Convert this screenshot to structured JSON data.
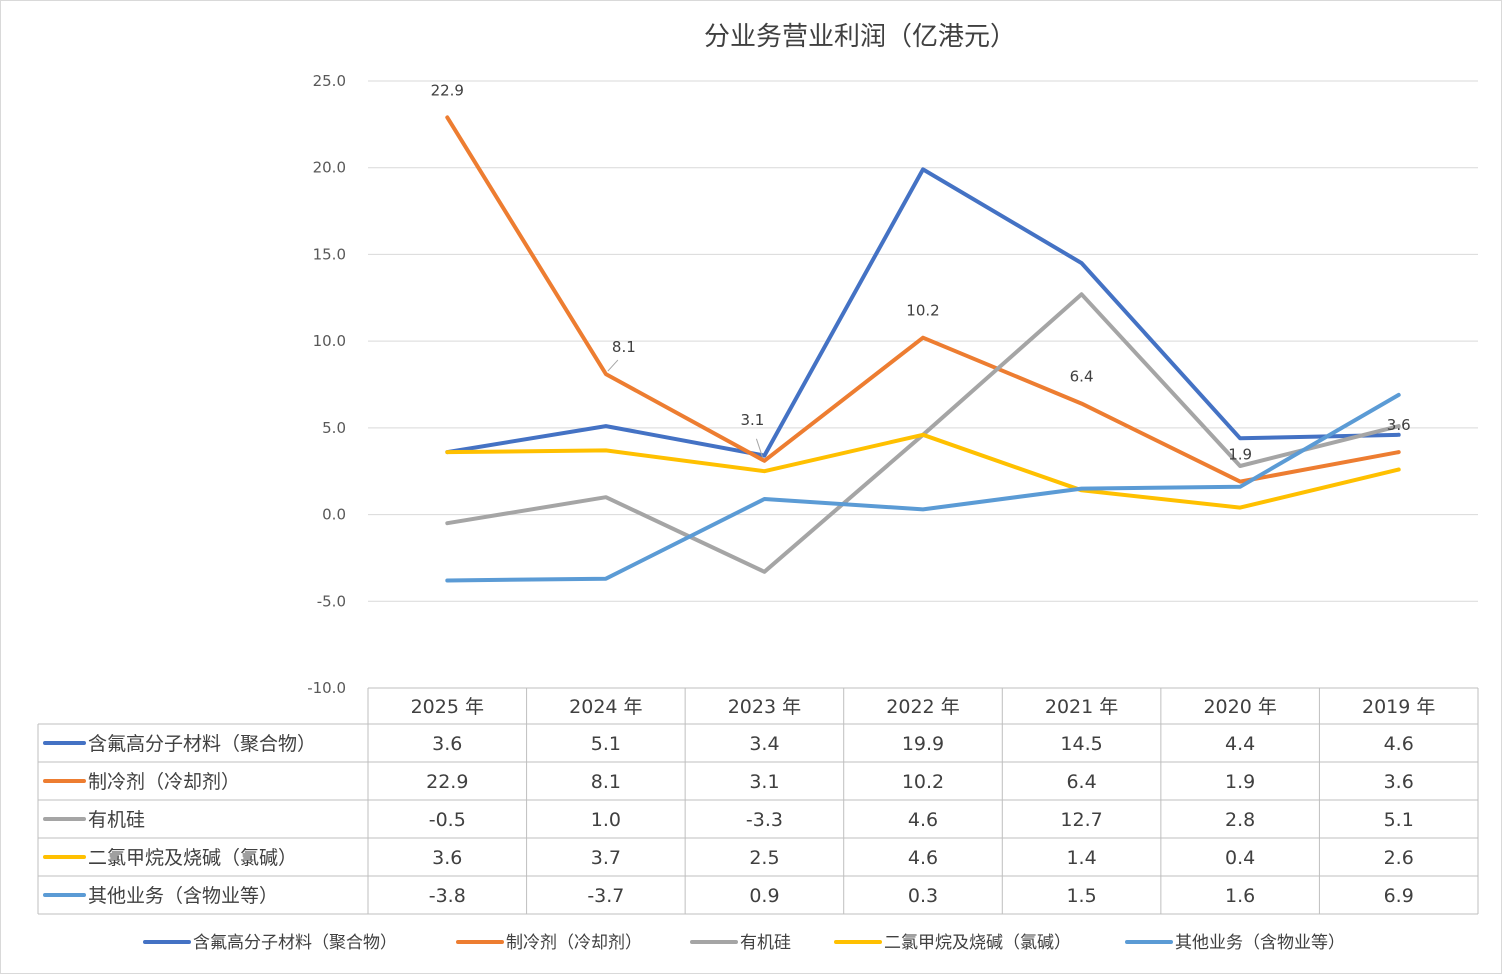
{
  "chart_data": {
    "type": "line",
    "title": "分业务营业利润（亿港元）",
    "categories": [
      "2025 年",
      "2024 年",
      "2023 年",
      "2022 年",
      "2021 年",
      "2020 年",
      "2019 年"
    ],
    "ylim": [
      -10,
      25
    ],
    "yticks": [
      "25.0",
      "20.0",
      "15.0",
      "10.0",
      "5.0",
      "0.0",
      "-5.0",
      "-10.0"
    ],
    "ytick_values": [
      25,
      20,
      15,
      10,
      5,
      0,
      -5,
      -10
    ],
    "grid": true,
    "legend": "bottom",
    "series": [
      {
        "name": "含氟高分子材料（聚合物）",
        "color": "#4472c4",
        "values": [
          3.6,
          5.1,
          3.4,
          19.9,
          14.5,
          4.4,
          4.6
        ],
        "labels": [
          "3.6",
          "5.1",
          "3.4",
          "19.9",
          "14.5",
          "4.4",
          "4.6"
        ]
      },
      {
        "name": "制冷剂（冷却剂）",
        "color": "#ed7d31",
        "values": [
          22.9,
          8.1,
          3.1,
          10.2,
          6.4,
          1.9,
          3.6
        ],
        "labels": [
          "22.9",
          "8.1",
          "3.1",
          "10.2",
          "6.4",
          "1.9",
          "3.6"
        ]
      },
      {
        "name": "有机硅",
        "color": "#a5a5a5",
        "values": [
          -0.5,
          1.0,
          -3.3,
          4.6,
          12.7,
          2.8,
          5.1
        ],
        "labels": [
          "-0.5",
          "1.0",
          "-3.3",
          "4.6",
          "12.7",
          "2.8",
          "5.1"
        ]
      },
      {
        "name": "二氯甲烷及烧碱（氯碱）",
        "color": "#ffc000",
        "values": [
          3.6,
          3.7,
          2.5,
          4.6,
          1.4,
          0.4,
          2.6
        ],
        "labels": [
          "3.6",
          "3.7",
          "2.5",
          "4.6",
          "1.4",
          "0.4",
          "2.6"
        ]
      },
      {
        "name": "其他业务（含物业等）",
        "color": "#5b9bd5",
        "values": [
          -3.8,
          -3.7,
          0.9,
          0.3,
          1.5,
          1.6,
          6.9
        ],
        "labels": [
          "-3.8",
          "-3.7",
          "0.9",
          "0.3",
          "1.5",
          "1.6",
          "6.9"
        ]
      }
    ],
    "annotations": [
      {
        "series": 1,
        "index": 0,
        "text": "22.9"
      },
      {
        "series": 1,
        "index": 1,
        "text": "8.1"
      },
      {
        "series": 1,
        "index": 2,
        "text": "3.1"
      },
      {
        "series": 1,
        "index": 3,
        "text": "10.2"
      },
      {
        "series": 1,
        "index": 4,
        "text": "6.4"
      },
      {
        "series": 1,
        "index": 5,
        "text": "1.9"
      },
      {
        "series": 1,
        "index": 6,
        "text": "3.6"
      }
    ]
  }
}
